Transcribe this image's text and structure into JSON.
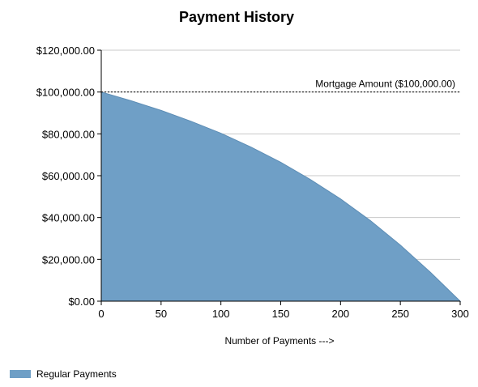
{
  "chart_data": {
    "type": "area",
    "title": "Payment History",
    "xlabel": "Number of Payments --->",
    "ylabel": "",
    "xlim": [
      0,
      300
    ],
    "ylim": [
      0,
      120000
    ],
    "x_ticks": [
      0,
      50,
      100,
      150,
      200,
      250,
      300
    ],
    "x_tick_labels": [
      "0",
      "50",
      "100",
      "150",
      "200",
      "250",
      "300"
    ],
    "y_ticks": [
      0,
      20000,
      40000,
      60000,
      80000,
      100000,
      120000
    ],
    "y_tick_labels": [
      "$0.00",
      "$20,000.00",
      "$40,000.00",
      "$60,000.00",
      "$80,000.00",
      "$100,000.00",
      "$120,000.00"
    ],
    "grid": true,
    "legend_position": "bottom-left",
    "series": [
      {
        "name": "Regular Payments",
        "color": "#6f9fc6",
        "x": [
          0,
          25,
          50,
          75,
          100,
          125,
          150,
          175,
          200,
          225,
          250,
          275,
          300
        ],
        "values": [
          100000,
          95800,
          91200,
          86000,
          80300,
          73700,
          66400,
          58100,
          48900,
          38500,
          26800,
          13900,
          0
        ]
      }
    ],
    "reference_line": {
      "y": 100000,
      "label": "Mortgage Amount ($100,000.00)",
      "style": "dashed"
    }
  }
}
